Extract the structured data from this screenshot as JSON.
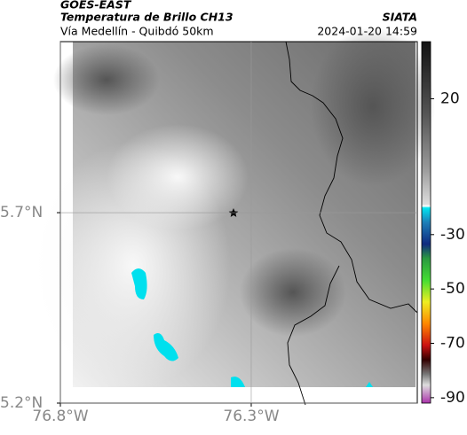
{
  "header": {
    "title": "GOES-EAST",
    "subtitle": "Temperatura de Brillo CH13",
    "route": "Vía Medellín - Quibdó 50km",
    "source": "SIATA",
    "timestamp": "2024-01-20 14:59"
  },
  "map": {
    "xlim": [
      -76.8,
      -75.865
    ],
    "ylim": [
      5.2,
      6.149
    ],
    "xticks": [
      {
        "value": -76.8,
        "label": "76.8°W"
      },
      {
        "value": -76.3,
        "label": "76.3°W"
      }
    ],
    "yticks": [
      {
        "value": 5.7,
        "label": "5.7°N"
      },
      {
        "value": 5.2,
        "label": "5.2°N"
      }
    ],
    "grid": true
  },
  "colorbar": {
    "lim": [
      -92,
      41
    ],
    "ticks": [
      20,
      -30,
      -50,
      -70,
      -90
    ]
  }
}
